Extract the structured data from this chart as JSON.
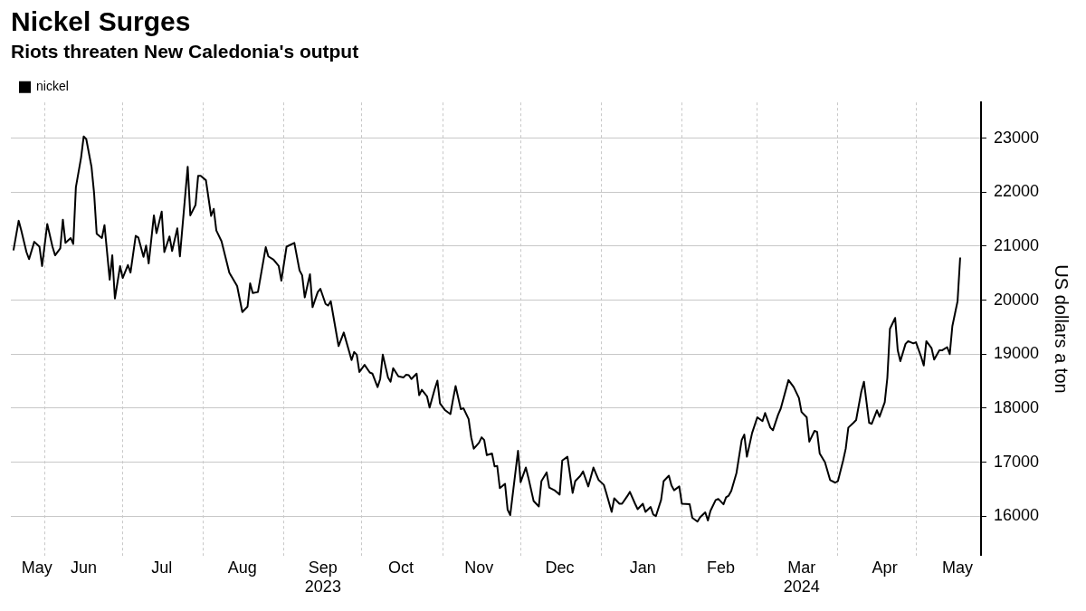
{
  "chart_data": {
    "type": "line",
    "title": "Nickel Surges",
    "subtitle": "Riots threaten New Caledonia's output",
    "ylabel": "US dollars a ton",
    "x": [
      "2023-05-20",
      "2023-05-22",
      "2023-05-23",
      "2023-05-25",
      "2023-05-26",
      "2023-05-28",
      "2023-05-30",
      "2023-05-31",
      "2023-06-02",
      "2023-06-04",
      "2023-06-05",
      "2023-06-07",
      "2023-06-08",
      "2023-06-09",
      "2023-06-11",
      "2023-06-12",
      "2023-06-13",
      "2023-06-15",
      "2023-06-16",
      "2023-06-17",
      "2023-06-19",
      "2023-06-20",
      "2023-06-21",
      "2023-06-23",
      "2023-06-24",
      "2023-06-26",
      "2023-06-27",
      "2023-06-28",
      "2023-06-30",
      "2023-07-01",
      "2023-07-03",
      "2023-07-04",
      "2023-07-06",
      "2023-07-07",
      "2023-07-09",
      "2023-07-10",
      "2023-07-11",
      "2023-07-13",
      "2023-07-14",
      "2023-07-16",
      "2023-07-17",
      "2023-07-19",
      "2023-07-20",
      "2023-07-22",
      "2023-07-23",
      "2023-07-24",
      "2023-07-26",
      "2023-07-27",
      "2023-07-29",
      "2023-07-30",
      "2023-07-31",
      "2023-08-02",
      "2023-08-04",
      "2023-08-05",
      "2023-08-06",
      "2023-08-08",
      "2023-08-11",
      "2023-08-14",
      "2023-08-16",
      "2023-08-18",
      "2023-08-19",
      "2023-08-20",
      "2023-08-22",
      "2023-08-25",
      "2023-08-26",
      "2023-08-28",
      "2023-08-30",
      "2023-08-31",
      "2023-09-02",
      "2023-09-05",
      "2023-09-07",
      "2023-09-08",
      "2023-09-09",
      "2023-09-11",
      "2023-09-12",
      "2023-09-14",
      "2023-09-15",
      "2023-09-17",
      "2023-09-18",
      "2023-09-19",
      "2023-09-22",
      "2023-09-24",
      "2023-09-27",
      "2023-09-28",
      "2023-09-29",
      "2023-09-30",
      "2023-10-02",
      "2023-10-04",
      "2023-10-05",
      "2023-10-07",
      "2023-10-08",
      "2023-10-09",
      "2023-10-11",
      "2023-10-12",
      "2023-10-13",
      "2023-10-15",
      "2023-10-17",
      "2023-10-18",
      "2023-10-19",
      "2023-10-20",
      "2023-10-22",
      "2023-10-23",
      "2023-10-24",
      "2023-10-26",
      "2023-10-27",
      "2023-10-29",
      "2023-10-30",
      "2023-10-31",
      "2023-11-02",
      "2023-11-04",
      "2023-11-05",
      "2023-11-06",
      "2023-11-08",
      "2023-11-09",
      "2023-11-11",
      "2023-11-12",
      "2023-11-13",
      "2023-11-15",
      "2023-11-16",
      "2023-11-17",
      "2023-11-18",
      "2023-11-20",
      "2023-11-21",
      "2023-11-22",
      "2023-11-23",
      "2023-11-25",
      "2023-11-26",
      "2023-11-27",
      "2023-11-30",
      "2023-12-01",
      "2023-12-03",
      "2023-12-04",
      "2023-12-06",
      "2023-12-08",
      "2023-12-09",
      "2023-12-11",
      "2023-12-12",
      "2023-12-14",
      "2023-12-16",
      "2023-12-17",
      "2023-12-19",
      "2023-12-21",
      "2023-12-22",
      "2023-12-24",
      "2023-12-25",
      "2023-12-27",
      "2023-12-29",
      "2023-12-31",
      "2024-01-02",
      "2024-01-03",
      "2024-01-05",
      "2024-01-06",
      "2024-01-08",
      "2024-01-09",
      "2024-01-11",
      "2024-01-12",
      "2024-01-14",
      "2024-01-15",
      "2024-01-17",
      "2024-01-18",
      "2024-01-20",
      "2024-01-21",
      "2024-01-22",
      "2024-01-24",
      "2024-01-25",
      "2024-01-27",
      "2024-01-28",
      "2024-01-29",
      "2024-01-31",
      "2024-02-01",
      "2024-02-04",
      "2024-02-05",
      "2024-02-07",
      "2024-02-08",
      "2024-02-10",
      "2024-02-11",
      "2024-02-12",
      "2024-02-14",
      "2024-02-15",
      "2024-02-17",
      "2024-02-18",
      "2024-02-19",
      "2024-02-20",
      "2024-02-22",
      "2024-02-24",
      "2024-02-25",
      "2024-02-26",
      "2024-02-28",
      "2024-03-01",
      "2024-03-03",
      "2024-03-04",
      "2024-03-06",
      "2024-03-07",
      "2024-03-09",
      "2024-03-10",
      "2024-03-13",
      "2024-03-15",
      "2024-03-17",
      "2024-03-18",
      "2024-03-20",
      "2024-03-21",
      "2024-03-23",
      "2024-03-24",
      "2024-03-25",
      "2024-03-27",
      "2024-03-29",
      "2024-03-31",
      "2024-04-01",
      "2024-04-03",
      "2024-04-04",
      "2024-04-05",
      "2024-04-07",
      "2024-04-08",
      "2024-04-10",
      "2024-04-11",
      "2024-04-13",
      "2024-04-14",
      "2024-04-16",
      "2024-04-17",
      "2024-04-19",
      "2024-04-20",
      "2024-04-21",
      "2024-04-23",
      "2024-04-24",
      "2024-04-25",
      "2024-04-27",
      "2024-04-28",
      "2024-04-30",
      "2024-05-01",
      "2024-05-03",
      "2024-05-04",
      "2024-05-05",
      "2024-05-07",
      "2024-05-08",
      "2024-05-10",
      "2024-05-11",
      "2024-05-13",
      "2024-05-14",
      "2024-05-15",
      "2024-05-17",
      "2024-05-18"
    ],
    "series": [
      {
        "name": "nickel",
        "color": "#000000",
        "values": [
          20920,
          21470,
          21290,
          20890,
          20760,
          21080,
          20990,
          20630,
          21410,
          20990,
          20830,
          20960,
          21490,
          21060,
          21150,
          21040,
          22090,
          22640,
          23030,
          22980,
          22470,
          21980,
          21230,
          21150,
          21390,
          20380,
          20830,
          20030,
          20630,
          20410,
          20650,
          20510,
          21190,
          21160,
          20800,
          21010,
          20680,
          21570,
          21240,
          21640,
          20890,
          21180,
          20910,
          21330,
          20810,
          21370,
          22470,
          21570,
          21760,
          22300,
          22300,
          22220,
          21560,
          21690,
          21290,
          21090,
          20510,
          20260,
          19780,
          19880,
          20310,
          20130,
          20150,
          20980,
          20810,
          20750,
          20630,
          20360,
          20990,
          21060,
          20550,
          20460,
          20050,
          20480,
          19870,
          20150,
          20210,
          19930,
          19900,
          19980,
          19150,
          19400,
          18890,
          19040,
          18990,
          18670,
          18800,
          18660,
          18640,
          18390,
          18540,
          18990,
          18570,
          18490,
          18740,
          18590,
          18570,
          18620,
          18610,
          18540,
          18640,
          18240,
          18340,
          18220,
          18010,
          18360,
          18510,
          18090,
          17960,
          17890,
          18160,
          18410,
          17980,
          18000,
          17800,
          17460,
          17250,
          17360,
          17460,
          17410,
          17130,
          17160,
          16920,
          16930,
          16520,
          16600,
          16120,
          16020,
          17210,
          16630,
          16900,
          16710,
          16280,
          16180,
          16650,
          16810,
          16530,
          16480,
          16400,
          17030,
          17100,
          16430,
          16650,
          16750,
          16830,
          16550,
          16900,
          16670,
          16580,
          16420,
          16080,
          16330,
          16230,
          16230,
          16370,
          16450,
          16230,
          16130,
          16230,
          16080,
          16170,
          16030,
          16000,
          16300,
          16650,
          16750,
          16570,
          16480,
          16550,
          16230,
          16220,
          15970,
          15900,
          15980,
          16070,
          15920,
          16100,
          16300,
          16320,
          16220,
          16350,
          16380,
          16470,
          16800,
          17410,
          17510,
          17100,
          17540,
          17830,
          17760,
          17910,
          17640,
          17590,
          17880,
          17990,
          18520,
          18390,
          18190,
          17930,
          17830,
          17380,
          17580,
          17560,
          17160,
          17000,
          16670,
          16620,
          16650,
          17030,
          17250,
          17640,
          17730,
          17780,
          18310,
          18490,
          17730,
          17710,
          17960,
          17840,
          18110,
          18560,
          19470,
          19670,
          19070,
          18870,
          19190,
          19240,
          19200,
          19220,
          18950,
          18790,
          19240,
          19110,
          18900,
          19070,
          19070,
          19130,
          19000,
          19520,
          19980,
          20790
        ]
      }
    ],
    "xlim": [
      "2023-05-19",
      "2024-05-26"
    ],
    "xticks": [
      {
        "value": "2023-06-01",
        "label": null
      },
      {
        "value": "2023-07-01",
        "label": null
      },
      {
        "value": "2023-08-01",
        "label": null
      },
      {
        "value": "2023-09-01",
        "label": null
      },
      {
        "value": "2023-10-01",
        "label": null
      },
      {
        "value": "2023-11-01",
        "label": null
      },
      {
        "value": "2023-12-01",
        "label": null
      },
      {
        "value": "2024-01-01",
        "label": null
      },
      {
        "value": "2024-02-01",
        "label": null
      },
      {
        "value": "2024-03-01",
        "label": null
      },
      {
        "value": "2024-04-01",
        "label": null
      },
      {
        "value": "2024-05-01",
        "label": null
      },
      {
        "value": "2023-05-29",
        "label": "May"
      },
      {
        "value": "2023-06-16",
        "label": "Jun"
      },
      {
        "value": "2023-07-16",
        "label": "Jul"
      },
      {
        "value": "2023-08-16",
        "label": "Aug"
      },
      {
        "value": "2023-09-16",
        "label": "Sep\n2023"
      },
      {
        "value": "2023-10-16",
        "label": "Oct"
      },
      {
        "value": "2023-11-15",
        "label": "Nov"
      },
      {
        "value": "2023-12-16",
        "label": "Dec"
      },
      {
        "value": "2024-01-17",
        "label": "Jan"
      },
      {
        "value": "2024-02-16",
        "label": "Feb"
      },
      {
        "value": "2024-03-18",
        "label": "Mar\n2024"
      },
      {
        "value": "2024-04-19",
        "label": "Apr"
      },
      {
        "value": "2024-05-17",
        "label": "May"
      }
    ],
    "ylim": [
      15270,
      23660
    ],
    "yticks": [
      16000,
      17000,
      18000,
      19000,
      20000,
      21000,
      22000,
      23000
    ],
    "grid": true,
    "legend": "top left",
    "marker": "none",
    "line_style": "solid"
  }
}
